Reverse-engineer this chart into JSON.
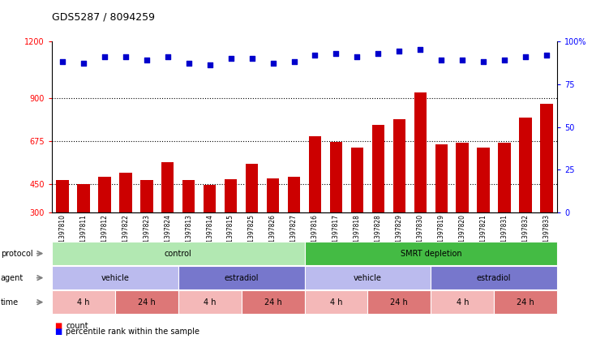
{
  "title": "GDS5287 / 8094259",
  "samples": [
    "GSM1397810",
    "GSM1397811",
    "GSM1397812",
    "GSM1397822",
    "GSM1397823",
    "GSM1397824",
    "GSM1397813",
    "GSM1397814",
    "GSM1397815",
    "GSM1397825",
    "GSM1397826",
    "GSM1397827",
    "GSM1397816",
    "GSM1397817",
    "GSM1397818",
    "GSM1397828",
    "GSM1397829",
    "GSM1397830",
    "GSM1397819",
    "GSM1397820",
    "GSM1397821",
    "GSM1397831",
    "GSM1397832",
    "GSM1397833"
  ],
  "counts": [
    470,
    452,
    490,
    510,
    472,
    565,
    470,
    445,
    475,
    555,
    480,
    490,
    700,
    672,
    642,
    760,
    790,
    930,
    660,
    668,
    640,
    665,
    800,
    870
  ],
  "percentiles": [
    88,
    87,
    91,
    91,
    89,
    91,
    87,
    86,
    90,
    90,
    87,
    88,
    92,
    93,
    91,
    93,
    94,
    95,
    89,
    89,
    88,
    89,
    91,
    92
  ],
  "ylim_left": [
    300,
    1200
  ],
  "ylim_right": [
    0,
    100
  ],
  "yticks_left": [
    300,
    450,
    675,
    900,
    1200
  ],
  "yticks_right": [
    0,
    25,
    50,
    75,
    100
  ],
  "bar_color": "#cc0000",
  "dot_color": "#0000cc",
  "protocol_spans": [
    {
      "label": "control",
      "start": 0,
      "end": 12,
      "color": "#b2e8b2"
    },
    {
      "label": "SMRT depletion",
      "start": 12,
      "end": 24,
      "color": "#44bb44"
    }
  ],
  "agent_spans": [
    {
      "label": "vehicle",
      "start": 0,
      "end": 6,
      "color": "#bbbbee"
    },
    {
      "label": "estradiol",
      "start": 6,
      "end": 12,
      "color": "#7777cc"
    },
    {
      "label": "vehicle",
      "start": 12,
      "end": 18,
      "color": "#bbbbee"
    },
    {
      "label": "estradiol",
      "start": 18,
      "end": 24,
      "color": "#7777cc"
    }
  ],
  "time_spans": [
    {
      "label": "4 h",
      "start": 0,
      "end": 3,
      "color": "#f4b8b8"
    },
    {
      "label": "24 h",
      "start": 3,
      "end": 6,
      "color": "#dd7777"
    },
    {
      "label": "4 h",
      "start": 6,
      "end": 9,
      "color": "#f4b8b8"
    },
    {
      "label": "24 h",
      "start": 9,
      "end": 12,
      "color": "#dd7777"
    },
    {
      "label": "4 h",
      "start": 12,
      "end": 15,
      "color": "#f4b8b8"
    },
    {
      "label": "24 h",
      "start": 15,
      "end": 18,
      "color": "#dd7777"
    },
    {
      "label": "4 h",
      "start": 18,
      "end": 21,
      "color": "#f4b8b8"
    },
    {
      "label": "24 h",
      "start": 21,
      "end": 24,
      "color": "#dd7777"
    }
  ],
  "row_labels": [
    "protocol",
    "agent",
    "time"
  ],
  "legend_items": [
    {
      "label": "count",
      "color": "#cc0000"
    },
    {
      "label": "percentile rank within the sample",
      "color": "#0000cc"
    }
  ]
}
